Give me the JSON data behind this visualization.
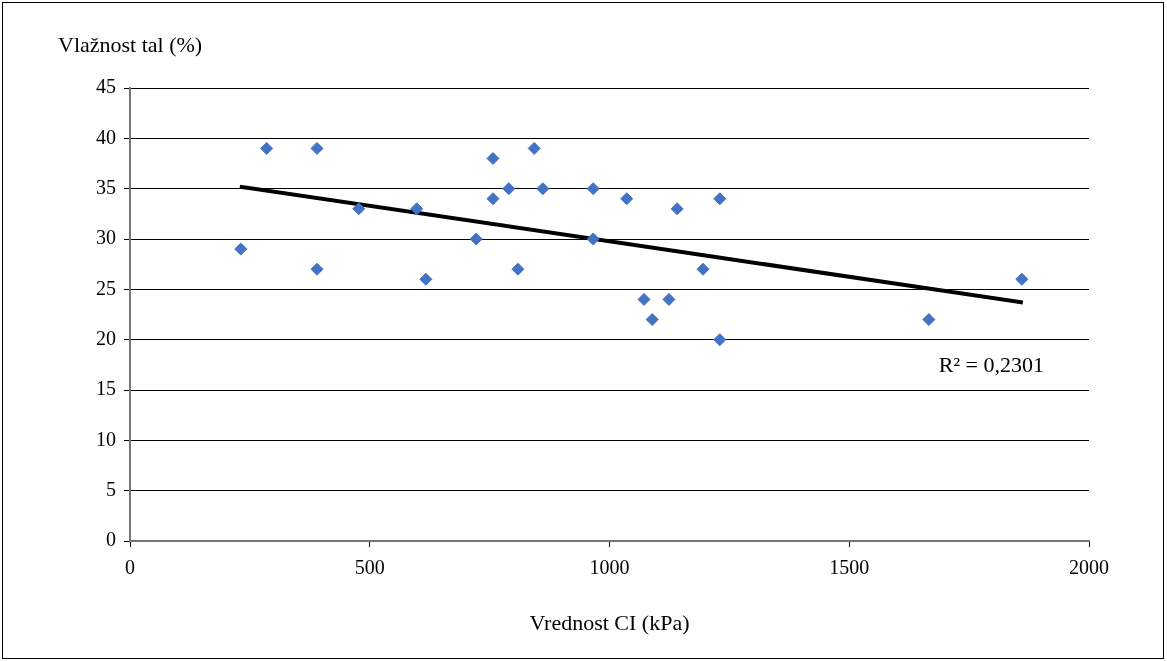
{
  "chart_data": {
    "type": "scatter",
    "xlabel": "Vrednost CI (kPa)",
    "ylabel": "Vlažnost tal (%)",
    "xlim": [
      0,
      2000
    ],
    "xticks": [
      0,
      500,
      1000,
      1500,
      2000
    ],
    "ylim": [
      0,
      45
    ],
    "yticks": [
      0,
      5,
      10,
      15,
      20,
      25,
      30,
      35,
      40,
      45
    ],
    "grid": "y",
    "legend": false,
    "marker": "diamond",
    "annotations": [
      "R² = 0,2301"
    ],
    "series": [
      {
        "color": "#4472c4",
        "x": [
          231,
          285,
          390,
          390,
          477,
          598,
          617,
          722,
          757,
          757,
          790,
          809,
          843,
          861,
          966,
          966,
          1036,
          1072,
          1089,
          1124,
          1141,
          1195,
          1230,
          1230,
          1666,
          1860
        ],
        "values": [
          29,
          39,
          39,
          27,
          33,
          33,
          26,
          30,
          38,
          34,
          35,
          27,
          39,
          35,
          35,
          30,
          34,
          24,
          22,
          24,
          33,
          27,
          34,
          20,
          22,
          26
        ]
      },
      {
        "type": "line",
        "color": "#000000",
        "marker": "none",
        "x": [
          229,
          1862
        ],
        "values": [
          35.2,
          23.7
        ]
      }
    ]
  }
}
